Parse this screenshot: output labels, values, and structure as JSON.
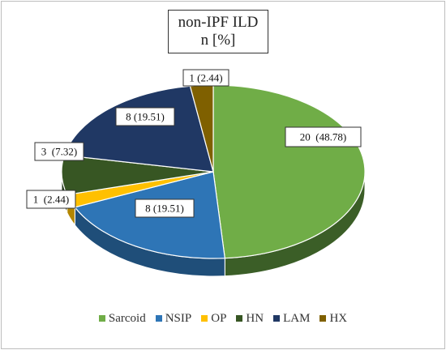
{
  "chart_data": {
    "type": "pie",
    "title_line1": "non-IPF ILD",
    "title_line2": "n [%]",
    "slices": [
      {
        "label": "Sarcoid",
        "count": 20,
        "percent": 48.78,
        "data_label": "20  (48.78)",
        "color": "#70ad47",
        "side_color": "#3b5e27"
      },
      {
        "label": "NSIP",
        "count": 8,
        "percent": 19.51,
        "data_label": "8 (19.51)",
        "color": "#2e75b6",
        "side_color": "#1f4e79"
      },
      {
        "label": "OP",
        "count": 1,
        "percent": 2.44,
        "data_label": "1  (2.44)",
        "color": "#ffc000",
        "side_color": "#b38600"
      },
      {
        "label": "HN",
        "count": 3,
        "percent": 7.32,
        "data_label": "3  (7.32)",
        "color": "#375623",
        "side_color": "#22361a"
      },
      {
        "label": "LAM",
        "count": 8,
        "percent": 19.51,
        "data_label": "8 (19.51)",
        "color": "#203864",
        "side_color": "#14233f"
      },
      {
        "label": "HX",
        "count": 1,
        "percent": 2.44,
        "data_label": "1 (2.44)",
        "color": "#7f6000",
        "side_color": "#4d3a00"
      }
    ],
    "legend_position": "bottom"
  }
}
